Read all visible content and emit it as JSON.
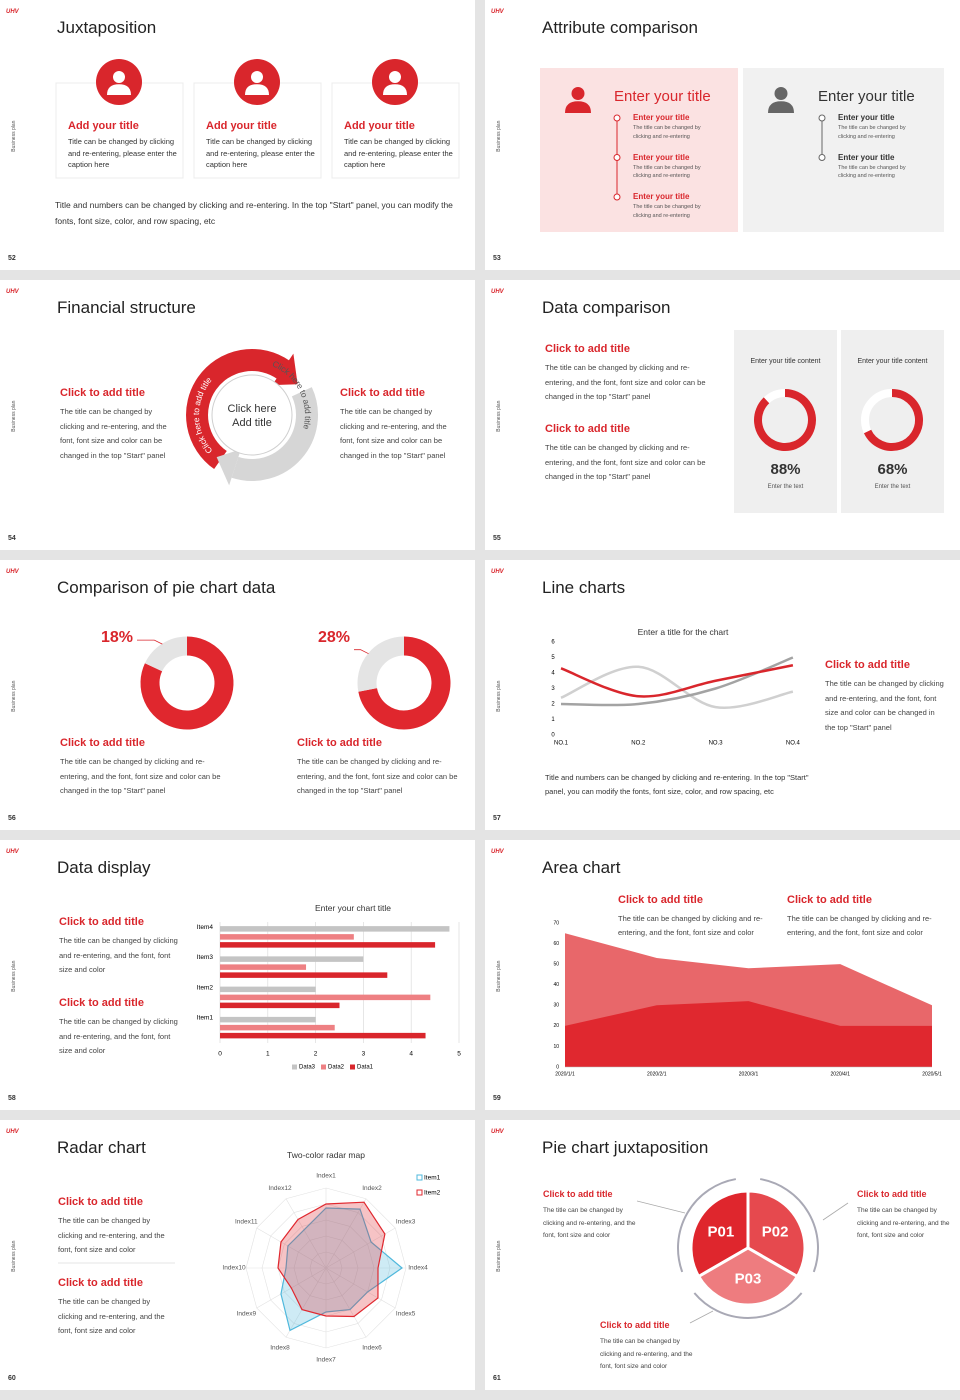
{
  "slides": [
    {
      "logo": "UHV",
      "side": "Business plan",
      "page": "52",
      "title": "Juxtaposition",
      "cards": [
        {
          "title": "Add your title",
          "text": "Title can be changed by clicking and re-entering, please enter the caption here"
        },
        {
          "title": "Add your title",
          "text": "Title can be changed by clicking and re-entering, please enter the caption here"
        },
        {
          "title": "Add your title",
          "text": "Title can be changed by clicking and re-entering, please enter the caption here"
        }
      ],
      "note": "Title and numbers can be changed by clicking and re-entering. In the top \"Start\" panel, you can modify the fonts, font size, color, and row spacing, etc"
    },
    {
      "logo": "UHV",
      "side": "Business plan",
      "page": "53",
      "title": "Attribute comparison",
      "panels": [
        {
          "title": "Enter your title",
          "items": [
            {
              "title": "Enter your title",
              "text": "The title can be changed by clicking and re-entering"
            },
            {
              "title": "Enter your title",
              "text": "The title can be changed by clicking and re-entering"
            },
            {
              "title": "Enter your title",
              "text": "The title can be changed by clicking and re-entering"
            }
          ]
        },
        {
          "title": "Enter your title",
          "items": [
            {
              "title": "Enter your title",
              "text": "The title can be changed by clicking and re-entering"
            },
            {
              "title": "Enter your title",
              "text": "The title can be changed by clicking and re-entering"
            }
          ]
        }
      ]
    },
    {
      "logo": "UHV",
      "side": "Business plan",
      "page": "54",
      "title": "Financial structure",
      "blocks": [
        {
          "title": "Click to add title",
          "text": "The title can be changed by clicking and re-entering, and the font, font size and color can be changed in the top \"Start\" panel"
        },
        {
          "title": "Click to add title",
          "text": "The title can be changed by clicking and re-entering, and the font, font size and color can be changed in the top \"Start\" panel"
        }
      ],
      "center": "Click here Add title",
      "arc_labels": [
        "Click here to add title",
        "Click here to add title"
      ]
    },
    {
      "logo": "UHV",
      "side": "Business plan",
      "page": "55",
      "title": "Data comparison",
      "blocks": [
        {
          "title": "Click to add title",
          "text": "The title can be changed by clicking and re-entering, and the font, font size and color can be changed in the top \"Start\" panel"
        },
        {
          "title": "Click to add title",
          "text": "The title can be changed by clicking and re-entering, and the font, font size and color can be changed in the top \"Start\" panel"
        }
      ],
      "gauges": [
        {
          "heading": "Enter your title content",
          "value": 88,
          "value_label": "88%",
          "caption": "Enter the text"
        },
        {
          "heading": "Enter your title content",
          "value": 68,
          "value_label": "68%",
          "caption": "Enter the text"
        }
      ]
    },
    {
      "logo": "UHV",
      "side": "Business plan",
      "page": "56",
      "title": "Comparison of pie chart data",
      "donuts": [
        {
          "value": 18,
          "value_label": "18%"
        },
        {
          "value": 28,
          "value_label": "28%"
        }
      ],
      "blocks": [
        {
          "title": "Click to add title",
          "text": "The title can be changed by clicking and re-entering, and the font, font size and color can be changed in the top \"Start\" panel"
        },
        {
          "title": "Click to add title",
          "text": "The title can be changed by clicking and re-entering, and the font, font size and color can be changed in the top \"Start\" panel"
        }
      ]
    },
    {
      "logo": "UHV",
      "side": "Business plan",
      "page": "57",
      "title": "Line charts",
      "chart": {
        "type": "line",
        "title": "Enter a title for the chart",
        "categories": [
          "NO.1",
          "NO.2",
          "NO.3",
          "NO.4"
        ],
        "series": [
          {
            "color": "#d0d0d0",
            "values": [
              2.4,
              4.4,
              1.8,
              2.8
            ]
          },
          {
            "color": "#a3a3a3",
            "values": [
              2,
              2,
              3,
              5
            ]
          },
          {
            "color": "#d9262c",
            "values": [
              4.3,
              2.5,
              3.5,
              4.5
            ]
          }
        ],
        "ylim": [
          0,
          6
        ],
        "yticks": [
          0,
          1,
          2,
          3,
          4,
          5,
          6
        ]
      },
      "blocks": [
        {
          "title": "Click to add title",
          "text": "The title can be changed by clicking and re-entering, and the font, font size and color can be changed in the top \"Start\" panel"
        }
      ],
      "note": "Title and numbers can be changed by clicking and re-entering. In the top \"Start\" panel, you can modify the fonts, font size, color, and row spacing, etc"
    },
    {
      "logo": "UHV",
      "side": "Business plan",
      "page": "58",
      "title": "Data display",
      "chart": {
        "type": "hbar",
        "title": "Enter your chart title",
        "categories": [
          "Item1",
          "Item2",
          "Item3",
          "Item4"
        ],
        "series": [
          {
            "name": "Data3",
            "color": "#c4c4c4",
            "values": [
              2,
              2,
              3,
              4.8
            ]
          },
          {
            "name": "Data2",
            "color": "#ee8083",
            "values": [
              2.4,
              4.4,
              1.8,
              2.8
            ]
          },
          {
            "name": "Data1",
            "color": "#d9262c",
            "values": [
              4.3,
              2.5,
              3.5,
              4.5
            ]
          }
        ],
        "xlim": [
          0,
          5
        ],
        "xticks": [
          0,
          1,
          2,
          3,
          4,
          5
        ],
        "grid": true
      },
      "blocks": [
        {
          "title": "Click to add title",
          "text": "The title can be changed by clicking and re-entering, and the font, font size and color"
        },
        {
          "title": "Click to add title",
          "text": "The title can be changed by clicking and re-entering, and the font, font size and color"
        }
      ]
    },
    {
      "logo": "UHV",
      "side": "Business plan",
      "page": "59",
      "title": "Area chart",
      "chart": {
        "type": "area",
        "categories": [
          "2020/1/1",
          "2020/2/1",
          "2020/3/1",
          "2020/4/1",
          "2020/5/1"
        ],
        "series": [
          {
            "color": "#e8676a",
            "values": [
              65,
              53,
              48,
              50,
              30
            ]
          },
          {
            "color": "#e0282f",
            "values": [
              20,
              30,
              32,
              20,
              20
            ]
          }
        ],
        "ylim": [
          0,
          70
        ],
        "yticks": [
          0,
          10,
          20,
          30,
          40,
          50,
          60,
          70
        ]
      },
      "blocks": [
        {
          "title": "Click to add title",
          "text": "The title can be changed by clicking and re-entering, and the font, font size and color"
        },
        {
          "title": "Click to add title",
          "text": "The title can be changed by clicking and re-entering, and the font, font size and color"
        }
      ]
    },
    {
      "logo": "UHV",
      "side": "Business plan",
      "page": "60",
      "title": "Radar chart",
      "chart": {
        "type": "radar",
        "title": "Two-color radar map",
        "categories": [
          "Index1",
          "Index2",
          "Index3",
          "Index4",
          "Index5",
          "Index6",
          "Index7",
          "Index8",
          "Index9",
          "Index10",
          "Index11",
          "Index12"
        ],
        "series": [
          {
            "name": "Item1",
            "color": "#4fb8dc",
            "values": [
              7.5,
              8.5,
              6.5,
              9.5,
              6,
              6,
              5.5,
              9,
              6.5,
              5,
              5.5,
              5.5
            ]
          },
          {
            "name": "Item2",
            "color": "#e0282f",
            "values": [
              8,
              9.5,
              8.5,
              6.5,
              7.5,
              7,
              6,
              6,
              5,
              6,
              6.5,
              7
            ]
          }
        ],
        "ylim": [
          0,
          10
        ]
      },
      "blocks": [
        {
          "title": "Click to add title",
          "text": "The title can be changed by clicking and re-entering, and the font, font size and color"
        },
        {
          "title": "Click to add title",
          "text": "The title can be changed by clicking and re-entering, and the font, font size and color"
        }
      ]
    },
    {
      "logo": "UHV",
      "side": "Business plan",
      "page": "61",
      "title": "Pie chart juxtaposition",
      "segments": [
        "P01",
        "P02",
        "P03"
      ],
      "blocks": [
        {
          "title": "Click to add title",
          "text": "The title can be changed by clicking and re-entering, and the font, font size and color"
        },
        {
          "title": "Click to add title",
          "text": "The title can be changed by clicking and re-entering, and the font, font size and color"
        },
        {
          "title": "Click to add title",
          "text": "The title can be changed by clicking and re-entering, and the font, font size and color"
        }
      ]
    }
  ]
}
